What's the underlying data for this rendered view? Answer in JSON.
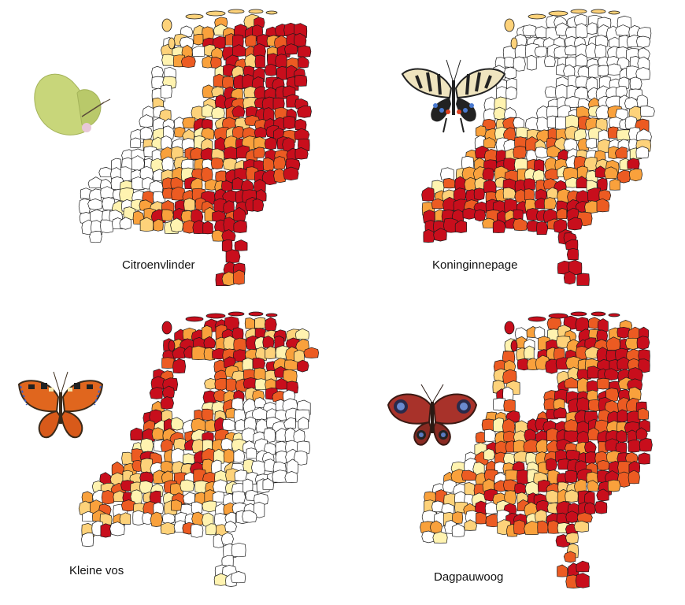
{
  "legend_colors": {
    "none": "#ffffff",
    "low": "#fff3b0",
    "mid_low": "#fdd27a",
    "mid": "#f9a13c",
    "mid_high": "#ec5b22",
    "high": "#c80e1c"
  },
  "outline_color": "#1a1a1a",
  "maps": [
    {
      "label": "Citroenvlinder",
      "butterfly_icon": "brimstone-butterfly-icon",
      "pattern": "east-dominant"
    },
    {
      "label": "Koninginnepage",
      "butterfly_icon": "swallowtail-butterfly-icon",
      "pattern": "south-central"
    },
    {
      "label": "Kleine vos",
      "butterfly_icon": "small-tortoiseshell-butterfly-icon",
      "pattern": "north-west"
    },
    {
      "label": "Dagpauwoog",
      "butterfly_icon": "peacock-butterfly-icon",
      "pattern": "widespread"
    }
  ]
}
